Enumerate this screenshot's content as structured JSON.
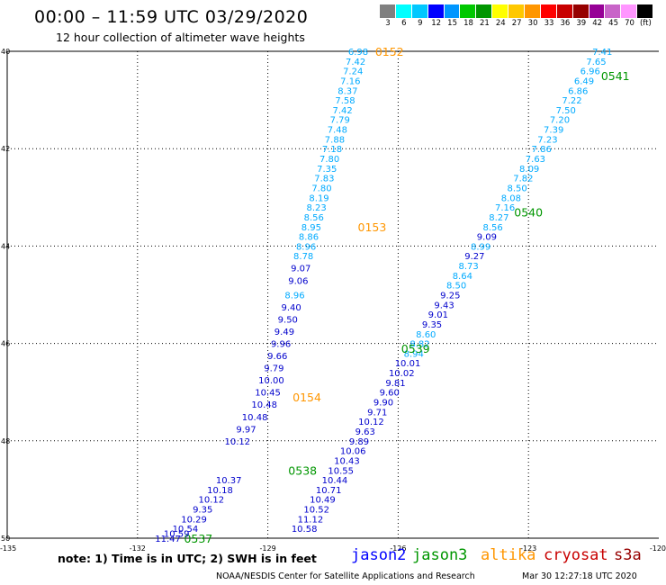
{
  "title": "00:00 – 11:59 UTC 03/29/2020",
  "subtitle": "12 hour collection of altimeter wave heights",
  "scale": {
    "colors": [
      "#808080",
      "#00ffff",
      "#00c8ff",
      "#0000ff",
      "#0096ff",
      "#00c800",
      "#009600",
      "#ffff00",
      "#ffc800",
      "#ff9600",
      "#ff0000",
      "#c80000",
      "#960000",
      "#960096",
      "#c864c8",
      "#ff96ff",
      "#000000"
    ],
    "labels": [
      "3",
      "6",
      "9",
      "12",
      "15",
      "18",
      "21",
      "24",
      "27",
      "30",
      "33",
      "36",
      "39",
      "42",
      "45",
      "70",
      "(ft)"
    ]
  },
  "axes": {
    "lat_labels": [
      "40",
      "42",
      "44",
      "46",
      "48",
      "50"
    ],
    "lon_labels": [
      "-135",
      "-132",
      "-129",
      "-126",
      "-123",
      "-120"
    ]
  },
  "note": "note: 1) Time is in UTC; 2) SWH is in feet",
  "legend": [
    {
      "name": "jason2",
      "color": "#0000ff"
    },
    {
      "name": "jason3",
      "color": "#009600"
    },
    {
      "name": "altika",
      "color": "#ff9600"
    },
    {
      "name": "cryosat",
      "color": "#c80000"
    },
    {
      "name": "s3a",
      "color": "#960000"
    }
  ],
  "credit": "NOAA/NESDIS Center for Satellite Applications and Research",
  "stamp": "Mar 30 12:27:18 UTC 2020",
  "tracks": [
    {
      "satellite": "altika",
      "times": [
        {
          "label": "0152",
          "lon": -126.2,
          "lat": 40.0
        },
        {
          "label": "0153",
          "lon": -126.6,
          "lat": 43.6
        },
        {
          "label": "0154",
          "lon": -128.1,
          "lat": 47.1
        }
      ],
      "points": [
        {
          "v": "6.98",
          "lon": -126.92,
          "lat": 40.0
        },
        {
          "v": "7.42",
          "lon": -126.98,
          "lat": 40.2
        },
        {
          "v": "7.24",
          "lon": -127.04,
          "lat": 40.4
        },
        {
          "v": "7.16",
          "lon": -127.1,
          "lat": 40.6
        },
        {
          "v": "8.37",
          "lon": -127.16,
          "lat": 40.8
        },
        {
          "v": "7.58",
          "lon": -127.22,
          "lat": 41.0
        },
        {
          "v": "7.42",
          "lon": -127.28,
          "lat": 41.2
        },
        {
          "v": "7.79",
          "lon": -127.34,
          "lat": 41.4
        },
        {
          "v": "7.48",
          "lon": -127.4,
          "lat": 41.6
        },
        {
          "v": "7.88",
          "lon": -127.46,
          "lat": 41.8
        },
        {
          "v": "7.18",
          "lon": -127.52,
          "lat": 42.0
        },
        {
          "v": "7.80",
          "lon": -127.58,
          "lat": 42.2
        },
        {
          "v": "7.35",
          "lon": -127.64,
          "lat": 42.4
        },
        {
          "v": "7.83",
          "lon": -127.7,
          "lat": 42.6
        },
        {
          "v": "7.80",
          "lon": -127.76,
          "lat": 42.8
        },
        {
          "v": "8.19",
          "lon": -127.82,
          "lat": 43.0
        },
        {
          "v": "8.23",
          "lon": -127.88,
          "lat": 43.2
        },
        {
          "v": "8.56",
          "lon": -127.94,
          "lat": 43.4
        },
        {
          "v": "8.95",
          "lon": -128.0,
          "lat": 43.6
        },
        {
          "v": "8.86",
          "lon": -128.06,
          "lat": 43.8
        },
        {
          "v": "8.96",
          "lon": -128.12,
          "lat": 44.0
        },
        {
          "v": "8.78",
          "lon": -128.18,
          "lat": 44.2
        },
        {
          "v": "9.07",
          "lon": -128.24,
          "lat": 44.45
        },
        {
          "v": "9.06",
          "lon": -128.3,
          "lat": 44.7
        },
        {
          "v": "8.96",
          "lon": -128.38,
          "lat": 45.0
        },
        {
          "v": "9.40",
          "lon": -128.46,
          "lat": 45.25
        },
        {
          "v": "9.50",
          "lon": -128.54,
          "lat": 45.5
        },
        {
          "v": "9.49",
          "lon": -128.62,
          "lat": 45.75
        },
        {
          "v": "9.96",
          "lon": -128.7,
          "lat": 46.0
        },
        {
          "v": "9.66",
          "lon": -128.78,
          "lat": 46.25
        },
        {
          "v": "9.79",
          "lon": -128.86,
          "lat": 46.5
        },
        {
          "v": "10.00",
          "lon": -128.92,
          "lat": 46.75
        },
        {
          "v": "10.45",
          "lon": -129.0,
          "lat": 47.0
        },
        {
          "v": "10.48",
          "lon": -129.08,
          "lat": 47.25
        },
        {
          "v": "10.48",
          "lon": -129.3,
          "lat": 47.5
        },
        {
          "v": "9.97",
          "lon": -129.5,
          "lat": 47.75
        },
        {
          "v": "10.12",
          "lon": -129.7,
          "lat": 48.0
        }
      ]
    },
    {
      "satellite": "jason3",
      "times": [
        {
          "label": "0541",
          "lon": -121.0,
          "lat": 40.5
        },
        {
          "label": "0540",
          "lon": -123.0,
          "lat": 43.3
        },
        {
          "label": "0539",
          "lon": -125.6,
          "lat": 46.1
        },
        {
          "label": "0538",
          "lon": -128.2,
          "lat": 48.6
        },
        {
          "label": "0537",
          "lon": -130.6,
          "lat": 50.0
        }
      ],
      "points": [
        {
          "v": "7.41",
          "lon": -121.3,
          "lat": 40.0
        },
        {
          "v": "7.65",
          "lon": -121.44,
          "lat": 40.2
        },
        {
          "v": "6.96",
          "lon": -121.58,
          "lat": 40.4
        },
        {
          "v": "6.49",
          "lon": -121.72,
          "lat": 40.6
        },
        {
          "v": "6.86",
          "lon": -121.86,
          "lat": 40.8
        },
        {
          "v": "7.22",
          "lon": -122.0,
          "lat": 41.0
        },
        {
          "v": "7.50",
          "lon": -122.14,
          "lat": 41.2
        },
        {
          "v": "7.20",
          "lon": -122.28,
          "lat": 41.4
        },
        {
          "v": "7.39",
          "lon": -122.42,
          "lat": 41.6
        },
        {
          "v": "7.23",
          "lon": -122.56,
          "lat": 41.8
        },
        {
          "v": "7.86",
          "lon": -122.7,
          "lat": 42.0
        },
        {
          "v": "7.63",
          "lon": -122.84,
          "lat": 42.2
        },
        {
          "v": "8.09",
          "lon": -122.98,
          "lat": 42.4
        },
        {
          "v": "7.82",
          "lon": -123.12,
          "lat": 42.6
        },
        {
          "v": "8.50",
          "lon": -123.26,
          "lat": 42.8
        },
        {
          "v": "8.08",
          "lon": -123.4,
          "lat": 43.0
        },
        {
          "v": "7.16",
          "lon": -123.54,
          "lat": 43.2
        },
        {
          "v": "8.27",
          "lon": -123.68,
          "lat": 43.4
        },
        {
          "v": "8.56",
          "lon": -123.82,
          "lat": 43.6
        },
        {
          "v": "9.09",
          "lon": -123.96,
          "lat": 43.8
        },
        {
          "v": "8.99",
          "lon": -124.1,
          "lat": 44.0
        },
        {
          "v": "9.27",
          "lon": -124.24,
          "lat": 44.2
        },
        {
          "v": "8.73",
          "lon": -124.38,
          "lat": 44.4
        },
        {
          "v": "8.64",
          "lon": -124.52,
          "lat": 44.6
        },
        {
          "v": "8.50",
          "lon": -124.66,
          "lat": 44.8
        },
        {
          "v": "9.25",
          "lon": -124.8,
          "lat": 45.0
        },
        {
          "v": "9.43",
          "lon": -124.94,
          "lat": 45.2
        },
        {
          "v": "9.01",
          "lon": -125.08,
          "lat": 45.4
        },
        {
          "v": "9.35",
          "lon": -125.22,
          "lat": 45.6
        },
        {
          "v": "8.60",
          "lon": -125.36,
          "lat": 45.8
        },
        {
          "v": "8.82",
          "lon": -125.5,
          "lat": 46.0
        },
        {
          "v": "8.94",
          "lon": -125.64,
          "lat": 46.2
        },
        {
          "v": "10.01",
          "lon": -125.78,
          "lat": 46.4
        },
        {
          "v": "10.02",
          "lon": -125.92,
          "lat": 46.6
        },
        {
          "v": "9.81",
          "lon": -126.06,
          "lat": 46.8
        },
        {
          "v": "9.60",
          "lon": -126.2,
          "lat": 47.0
        },
        {
          "v": "9.90",
          "lon": -126.34,
          "lat": 47.2
        },
        {
          "v": "9.71",
          "lon": -126.48,
          "lat": 47.4
        },
        {
          "v": "10.12",
          "lon": -126.62,
          "lat": 47.6
        },
        {
          "v": "9.63",
          "lon": -126.76,
          "lat": 47.8
        },
        {
          "v": "9.89",
          "lon": -126.9,
          "lat": 48.0
        },
        {
          "v": "10.06",
          "lon": -127.04,
          "lat": 48.2
        },
        {
          "v": "10.43",
          "lon": -127.18,
          "lat": 48.4
        },
        {
          "v": "10.55",
          "lon": -127.32,
          "lat": 48.6
        },
        {
          "v": "10.44",
          "lon": -127.46,
          "lat": 48.8
        },
        {
          "v": "10.71",
          "lon": -127.6,
          "lat": 49.0
        },
        {
          "v": "10.49",
          "lon": -127.74,
          "lat": 49.2
        },
        {
          "v": "10.52",
          "lon": -127.88,
          "lat": 49.4
        },
        {
          "v": "11.12",
          "lon": -128.02,
          "lat": 49.6
        },
        {
          "v": "10.58",
          "lon": -128.16,
          "lat": 49.8
        }
      ]
    },
    {
      "satellite": "jason2",
      "times": [],
      "points": [
        {
          "v": "10.37",
          "lon": -129.9,
          "lat": 48.8
        },
        {
          "v": "10.18",
          "lon": -130.1,
          "lat": 49.0
        },
        {
          "v": "10.12",
          "lon": -130.3,
          "lat": 49.2
        },
        {
          "v": "9.35",
          "lon": -130.5,
          "lat": 49.4
        },
        {
          "v": "10.29",
          "lon": -130.7,
          "lat": 49.6
        },
        {
          "v": "10.54",
          "lon": -130.9,
          "lat": 49.8
        },
        {
          "v": "10.59",
          "lon": -131.1,
          "lat": 49.9
        },
        {
          "v": "11.47",
          "lon": -131.3,
          "lat": 50.0
        }
      ]
    }
  ]
}
